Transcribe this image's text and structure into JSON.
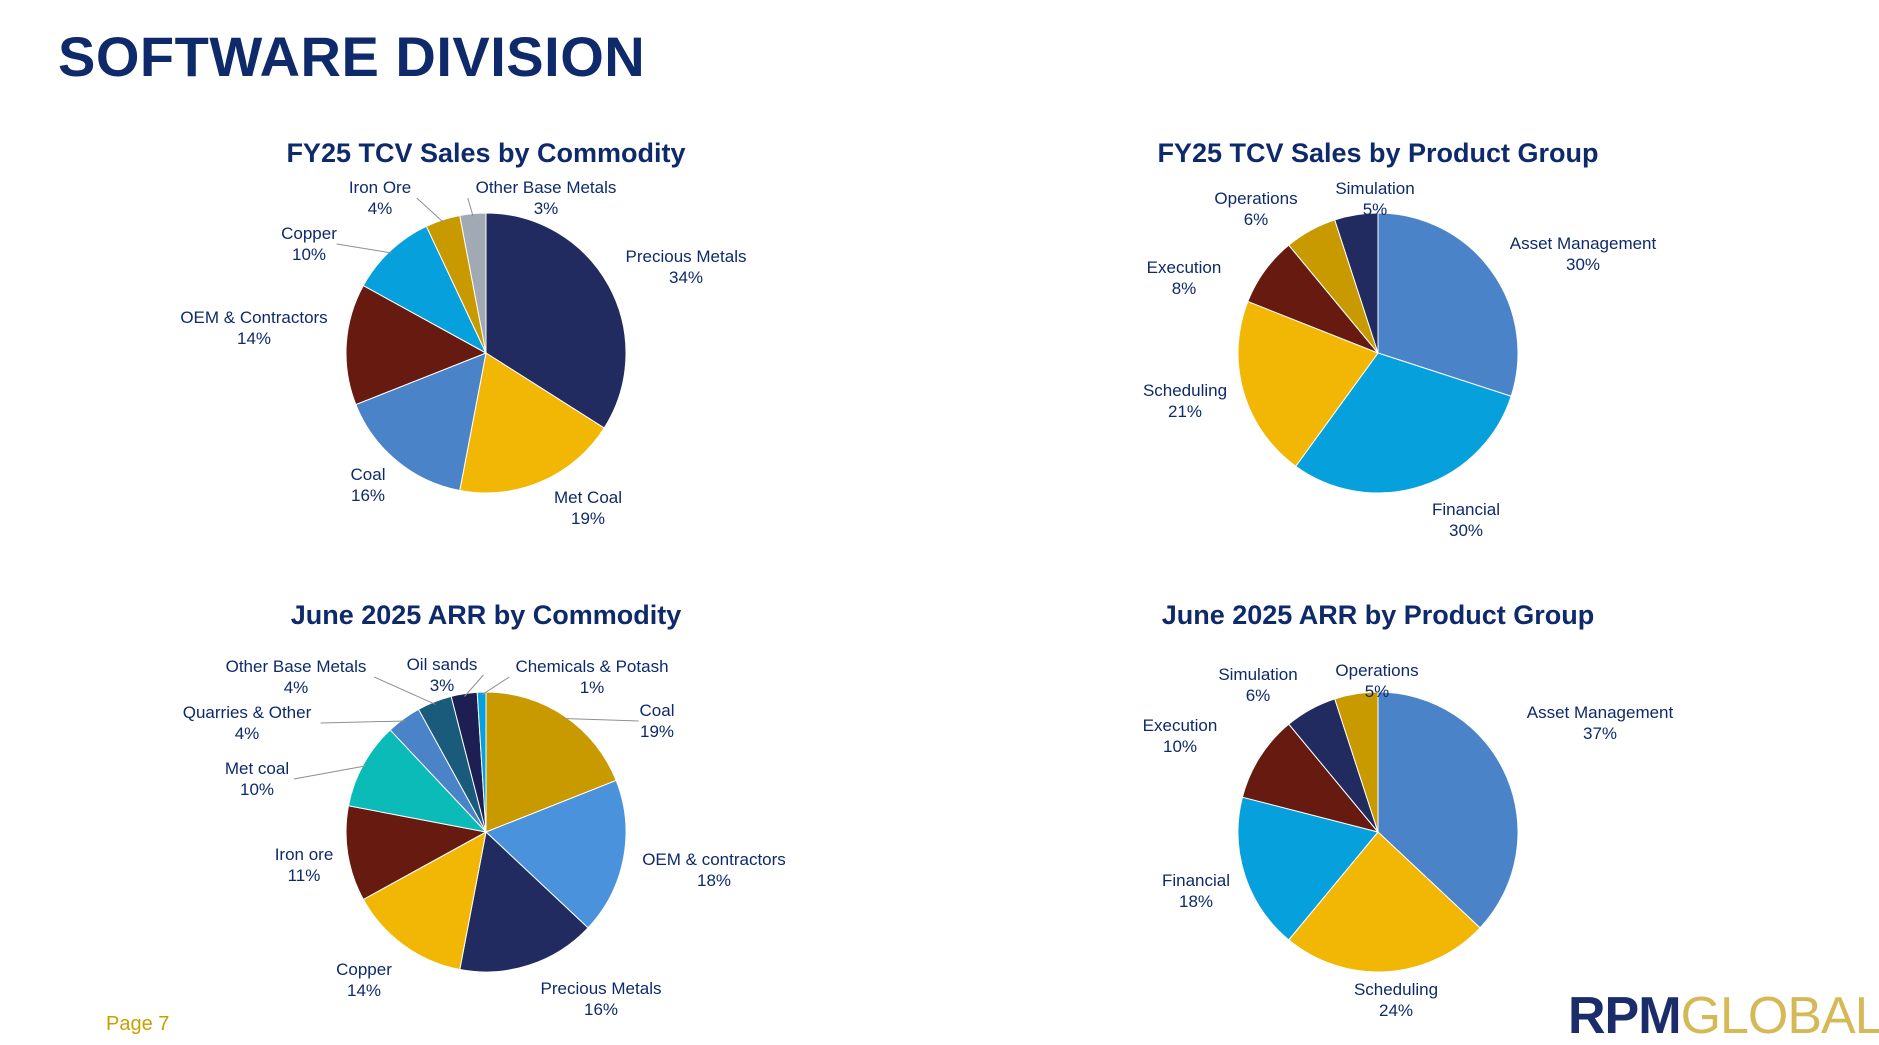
{
  "page": {
    "title": "SOFTWARE DIVISION",
    "page_number": "Page 7",
    "logo": {
      "part1": "RPM",
      "part2": "GLOBAL",
      "colors": {
        "part1": "#1a2d6a",
        "part2": "#d6b957"
      }
    }
  },
  "colors": {
    "title": "#0e2a6b",
    "label": "#0e2a6b",
    "leader": "#8f8f8f"
  },
  "chart_data": [
    {
      "type": "pie",
      "title": "FY25 TCV Sales by Commodity",
      "start": "12 o'clock",
      "direction": "clockwise",
      "slices": [
        {
          "name": "Precious Metals",
          "label": "34%",
          "value": 34,
          "color": "#222b5f"
        },
        {
          "name": "Met Coal",
          "label": "19%",
          "value": 19,
          "color": "#f2b705"
        },
        {
          "name": "Coal",
          "label": "16%",
          "value": 16,
          "color": "#4a83c8"
        },
        {
          "name": "OEM & Contractors",
          "label": "14%",
          "value": 14,
          "color": "#671a0f"
        },
        {
          "name": "Copper",
          "label": "10%",
          "value": 10,
          "color": "#06a0dc"
        },
        {
          "name": "Iron Ore",
          "label": "4%",
          "value": 4,
          "color": "#c99a00"
        },
        {
          "name": "Other Base Metals",
          "label": "3%",
          "value": 3,
          "color": "#a1a9b4"
        }
      ]
    },
    {
      "type": "pie",
      "title": "FY25 TCV Sales by Product Group",
      "start": "12 o'clock",
      "direction": "clockwise",
      "slices": [
        {
          "name": "Asset Management",
          "label": "30%",
          "value": 30,
          "color": "#4a83c8"
        },
        {
          "name": "Financial",
          "label": "30%",
          "value": 30,
          "color": "#06a0dc"
        },
        {
          "name": "Scheduling",
          "label": "21%",
          "value": 21,
          "color": "#f2b705"
        },
        {
          "name": "Execution",
          "label": "8%",
          "value": 8,
          "color": "#671a0f"
        },
        {
          "name": "Operations",
          "label": "6%",
          "value": 6,
          "color": "#c99a00"
        },
        {
          "name": "Simulation",
          "label": "5%",
          "value": 5,
          "color": "#222b5f"
        }
      ]
    },
    {
      "type": "pie",
      "title": "June 2025 ARR by Commodity",
      "start": "12 o'clock",
      "direction": "clockwise",
      "slices": [
        {
          "name": "Coal",
          "label": "19%",
          "value": 19,
          "color": "#c99a00"
        },
        {
          "name": "OEM & contractors",
          "label": "18%",
          "value": 18,
          "color": "#4a93dc"
        },
        {
          "name": "Precious Metals",
          "label": "16%",
          "value": 16,
          "color": "#222b5f"
        },
        {
          "name": "Copper",
          "label": "14%",
          "value": 14,
          "color": "#f2b705"
        },
        {
          "name": "Iron ore",
          "label": "11%",
          "value": 11,
          "color": "#671a0f"
        },
        {
          "name": "Met coal",
          "label": "10%",
          "value": 10,
          "color": "#0bbbb8"
        },
        {
          "name": "Quarries & Other",
          "label": "4%",
          "value": 4,
          "color": "#4a83c8"
        },
        {
          "name": "Other Base Metals",
          "label": "4%",
          "value": 4,
          "color": "#1a5a7a"
        },
        {
          "name": "Oil sands",
          "label": "3%",
          "value": 3,
          "color": "#1d1f52"
        },
        {
          "name": "Chemicals & Potash",
          "label": "1%",
          "value": 1,
          "color": "#06a0dc"
        }
      ]
    },
    {
      "type": "pie",
      "title": "June 2025 ARR by Product Group",
      "start": "12 o'clock",
      "direction": "clockwise",
      "slices": [
        {
          "name": "Asset Management",
          "label": "37%",
          "value": 37,
          "color": "#4a83c8"
        },
        {
          "name": "Scheduling",
          "label": "24%",
          "value": 24,
          "color": "#f2b705"
        },
        {
          "name": "Financial",
          "label": "18%",
          "value": 18,
          "color": "#06a0dc"
        },
        {
          "name": "Execution",
          "label": "10%",
          "value": 10,
          "color": "#671a0f"
        },
        {
          "name": "Simulation",
          "label": "6%",
          "value": 6,
          "color": "#222b5f"
        },
        {
          "name": "Operations",
          "label": "5%",
          "value": 5,
          "color": "#c99a00"
        }
      ]
    }
  ]
}
